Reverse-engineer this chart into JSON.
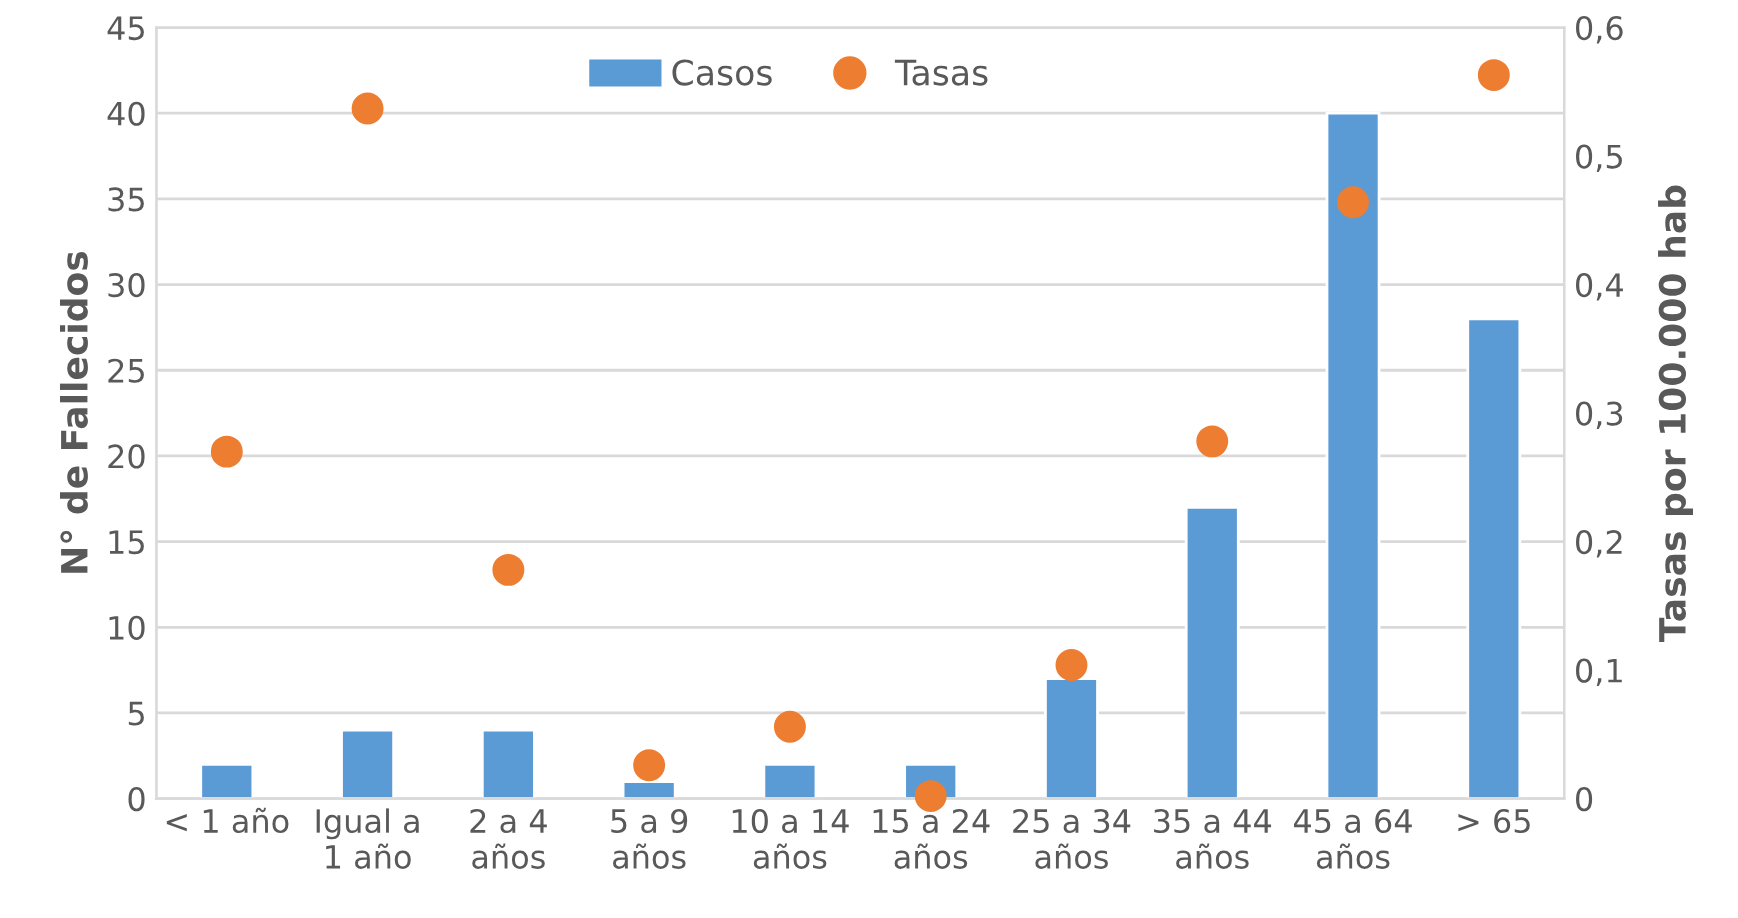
{
  "chart_data": {
    "type": "bar",
    "categories": [
      "< 1 año",
      "Igual a\n1 año",
      "2 a 4\naños",
      "5 a 9\naños",
      "10 a 14\naños",
      "15 a 24\naños",
      "25 a 34\naños",
      "35 a 44\naños",
      "45 a 64\naños",
      "> 65"
    ],
    "series": [
      {
        "name": "Casos",
        "color": "#5b9bd5",
        "values": [
          2,
          4,
          4,
          1,
          2,
          2,
          7,
          17,
          40,
          28
        ]
      },
      {
        "name": "Tasas",
        "type": "scatter",
        "axis": "y2",
        "color": "#ed7d31",
        "marker": "circle",
        "values": [
          0.27,
          0.537,
          0.178,
          0.026,
          0.056,
          0.002,
          0.104,
          0.278,
          0.464,
          0.563
        ]
      }
    ],
    "ylabel": "N° de Fallecidos",
    "y2label": "Tasas por 100.000 hab",
    "ylim": [
      0,
      45
    ],
    "yticks": [
      0,
      5,
      10,
      15,
      20,
      25,
      30,
      35,
      40,
      45
    ],
    "y2lim": [
      0,
      0.6
    ],
    "y2ticks": [
      0,
      {
        "value": 0.1,
        "label": "0,1"
      },
      {
        "value": 0.2,
        "label": "0,2"
      },
      {
        "value": 0.3,
        "label": "0,3"
      },
      {
        "value": 0.4,
        "label": "0,4"
      },
      {
        "value": 0.5,
        "label": "0,5"
      },
      {
        "value": 0.6,
        "label": "0,6"
      }
    ],
    "grid": "y",
    "legend": "top"
  }
}
